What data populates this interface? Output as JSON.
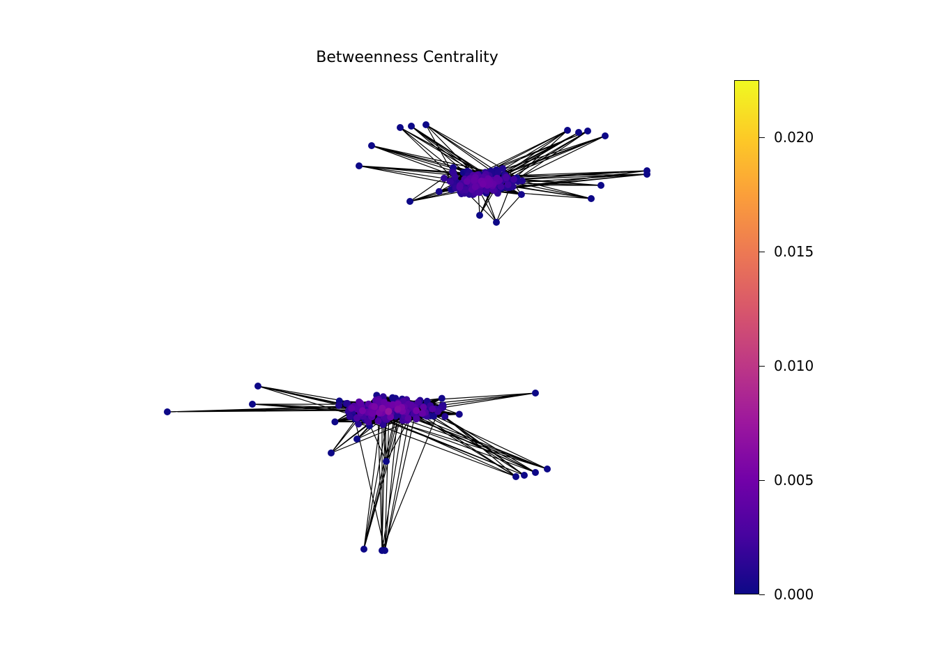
{
  "title": "Betweenness Centrality",
  "colorbar": {
    "colormap": "plasma",
    "min": 0.0,
    "max": 0.0225,
    "stops": [
      "#0d0887",
      "#46039f",
      "#7201a8",
      "#9c179e",
      "#bd3786",
      "#d8576b",
      "#ed7953",
      "#fb9f3a",
      "#fdca26",
      "#f0f921"
    ],
    "ticks": [
      {
        "value": 0.0,
        "label": "0.000"
      },
      {
        "value": 0.005,
        "label": "0.005"
      },
      {
        "value": 0.01,
        "label": "0.010"
      },
      {
        "value": 0.015,
        "label": "0.015"
      },
      {
        "value": 0.02,
        "label": "0.020"
      }
    ]
  },
  "edge_color": "#000000",
  "node_min_color": "#0d0887"
}
